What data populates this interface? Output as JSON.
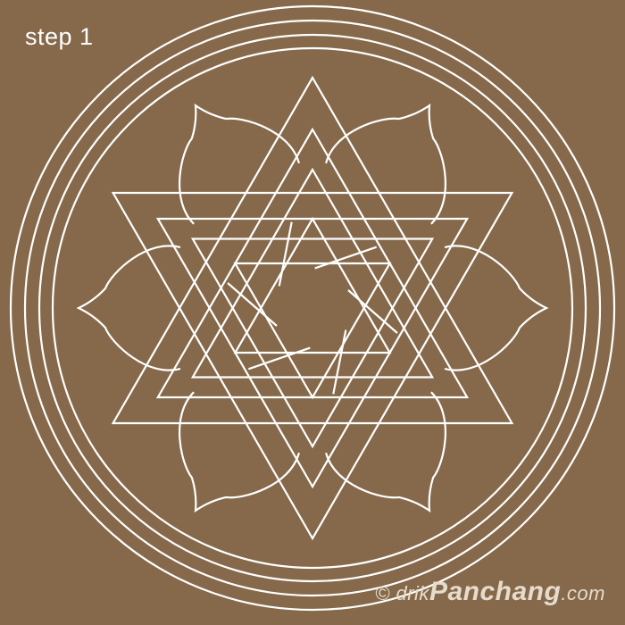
{
  "step_label": "step 1",
  "watermark": {
    "copyright": "© drik",
    "brand": "Panchang",
    "domain": ".com"
  },
  "colors": {
    "background": "#85694a",
    "line": "#ffffff"
  }
}
